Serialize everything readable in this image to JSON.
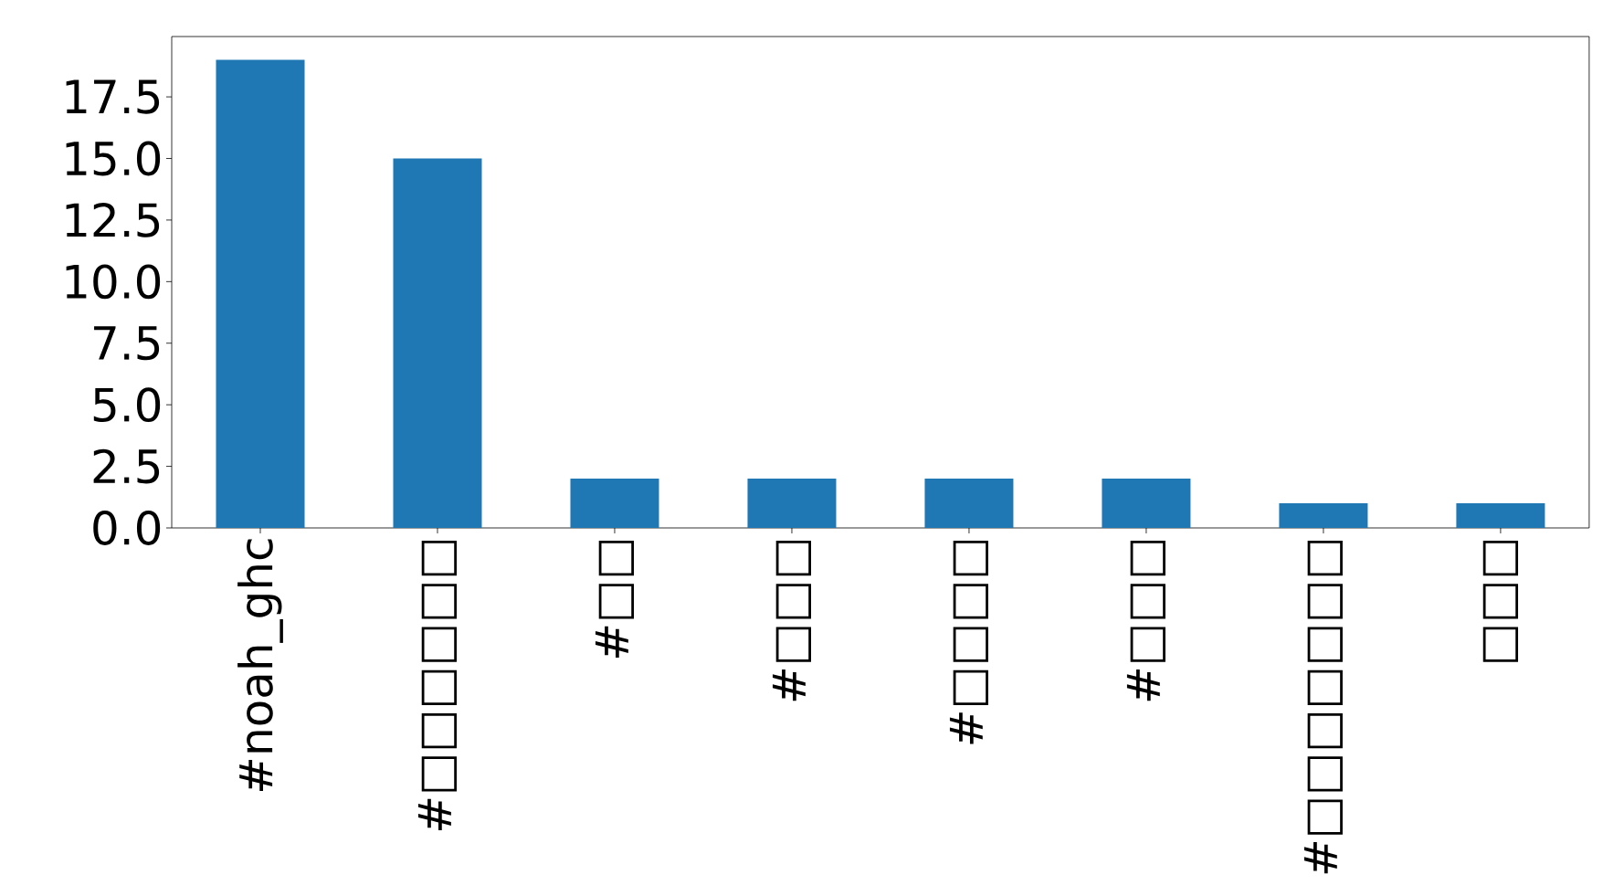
{
  "chart_data": {
    "type": "bar",
    "categories": [
      "#noah_ghc",
      "#□□□□□□",
      "#□□",
      "#□□□",
      "#□□□□",
      "#□□□",
      "#□□□□□□□",
      "□□□"
    ],
    "values": [
      19,
      15,
      2,
      2,
      2,
      2,
      1,
      1
    ],
    "color": "#1f77b4",
    "ylim": [
      0,
      19.95
    ],
    "yticks": [
      {
        "value": 0,
        "label": "0.0"
      },
      2.5,
      {
        "value": 5,
        "label": "5.0"
      },
      7.5,
      {
        "value": 10,
        "label": "10.0"
      },
      12.5,
      {
        "value": 15,
        "label": "15.0"
      },
      17.5
    ]
  }
}
